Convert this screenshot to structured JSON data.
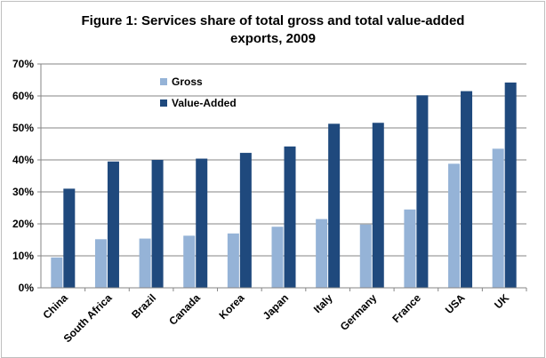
{
  "chart_data": {
    "type": "bar",
    "title_lines": [
      "Figure 1: Services share of total gross and total value-added",
      "exports, 2009"
    ],
    "categories": [
      "China",
      "South Africa",
      "Brazil",
      "Canada",
      "Korea",
      "Japan",
      "Italy",
      "Germany",
      "France",
      "USA",
      "UK"
    ],
    "series": [
      {
        "name": "Gross",
        "color": "#95b3d7",
        "values": [
          9.5,
          15.2,
          15.4,
          16.3,
          17.0,
          19.1,
          21.5,
          19.8,
          24.5,
          38.8,
          43.5
        ]
      },
      {
        "name": "Value-Added",
        "color": "#1f497d",
        "values": [
          31.0,
          39.5,
          40.0,
          40.4,
          42.2,
          44.2,
          51.3,
          51.6,
          60.2,
          61.5,
          64.2
        ]
      }
    ],
    "yticks": [
      "0%",
      "10%",
      "20%",
      "30%",
      "40%",
      "50%",
      "60%",
      "70%"
    ],
    "ylim": [
      0,
      70
    ],
    "grid": true,
    "legend_position": "top-left"
  }
}
